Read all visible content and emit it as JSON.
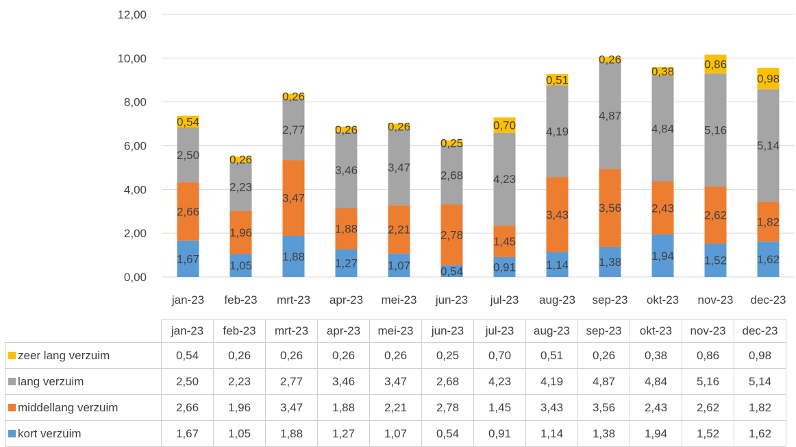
{
  "chart_data": {
    "type": "bar",
    "stacked": true,
    "categories": [
      "jan-23",
      "feb-23",
      "mrt-23",
      "apr-23",
      "mei-23",
      "jun-23",
      "jul-23",
      "aug-23",
      "sep-23",
      "okt-23",
      "nov-23",
      "dec-23"
    ],
    "series": [
      {
        "name": "kort verzuim",
        "color": "#5b9bd5",
        "values": [
          1.67,
          1.05,
          1.88,
          1.27,
          1.07,
          0.54,
          0.91,
          1.14,
          1.38,
          1.94,
          1.52,
          1.62
        ]
      },
      {
        "name": "middellang verzuim",
        "color": "#ed7d31",
        "values": [
          2.66,
          1.96,
          3.47,
          1.88,
          2.21,
          2.78,
          1.45,
          3.43,
          3.56,
          2.43,
          2.62,
          1.82
        ]
      },
      {
        "name": "lang verzuim",
        "color": "#a5a5a5",
        "values": [
          2.5,
          2.23,
          2.77,
          3.46,
          3.47,
          2.68,
          4.23,
          4.19,
          4.87,
          4.84,
          5.16,
          5.14
        ]
      },
      {
        "name": "zeer lang verzuim",
        "color": "#ffc000",
        "values": [
          0.54,
          0.26,
          0.26,
          0.26,
          0.26,
          0.25,
          0.7,
          0.51,
          0.26,
          0.38,
          0.86,
          0.98
        ]
      }
    ],
    "ylim": [
      0,
      12
    ],
    "yticks": [
      "0,00",
      "2,00",
      "4,00",
      "6,00",
      "8,00",
      "10,00",
      "12,00"
    ],
    "data_labels": {
      "kort verzuim": [
        "1,67",
        "1,05",
        "1,88",
        "1,27",
        "1,07",
        "0,54",
        "0,91",
        "1,14",
        "1,38",
        "1,94",
        "1,52",
        "1,62"
      ],
      "middellang verzuim": [
        "2,66",
        "1,96",
        "3,47",
        "1,88",
        "2,21",
        "2,78",
        "1,45",
        "3,43",
        "3,56",
        "2,43",
        "2,62",
        "1,82"
      ],
      "lang verzuim": [
        "2,50",
        "2,23",
        "2,77",
        "3,46",
        "3,47",
        "2,68",
        "4,23",
        "4,19",
        "4,87",
        "4,84",
        "5,16",
        "5,14"
      ],
      "zeer lang verzuim": [
        "0,54",
        "0,26",
        "0,26",
        "0,26",
        "0,26",
        "0,25",
        "0,70",
        "0,51",
        "0,26",
        "0,38",
        "0,86",
        "0,98"
      ]
    },
    "gridlines": true,
    "legend": "data-table"
  }
}
